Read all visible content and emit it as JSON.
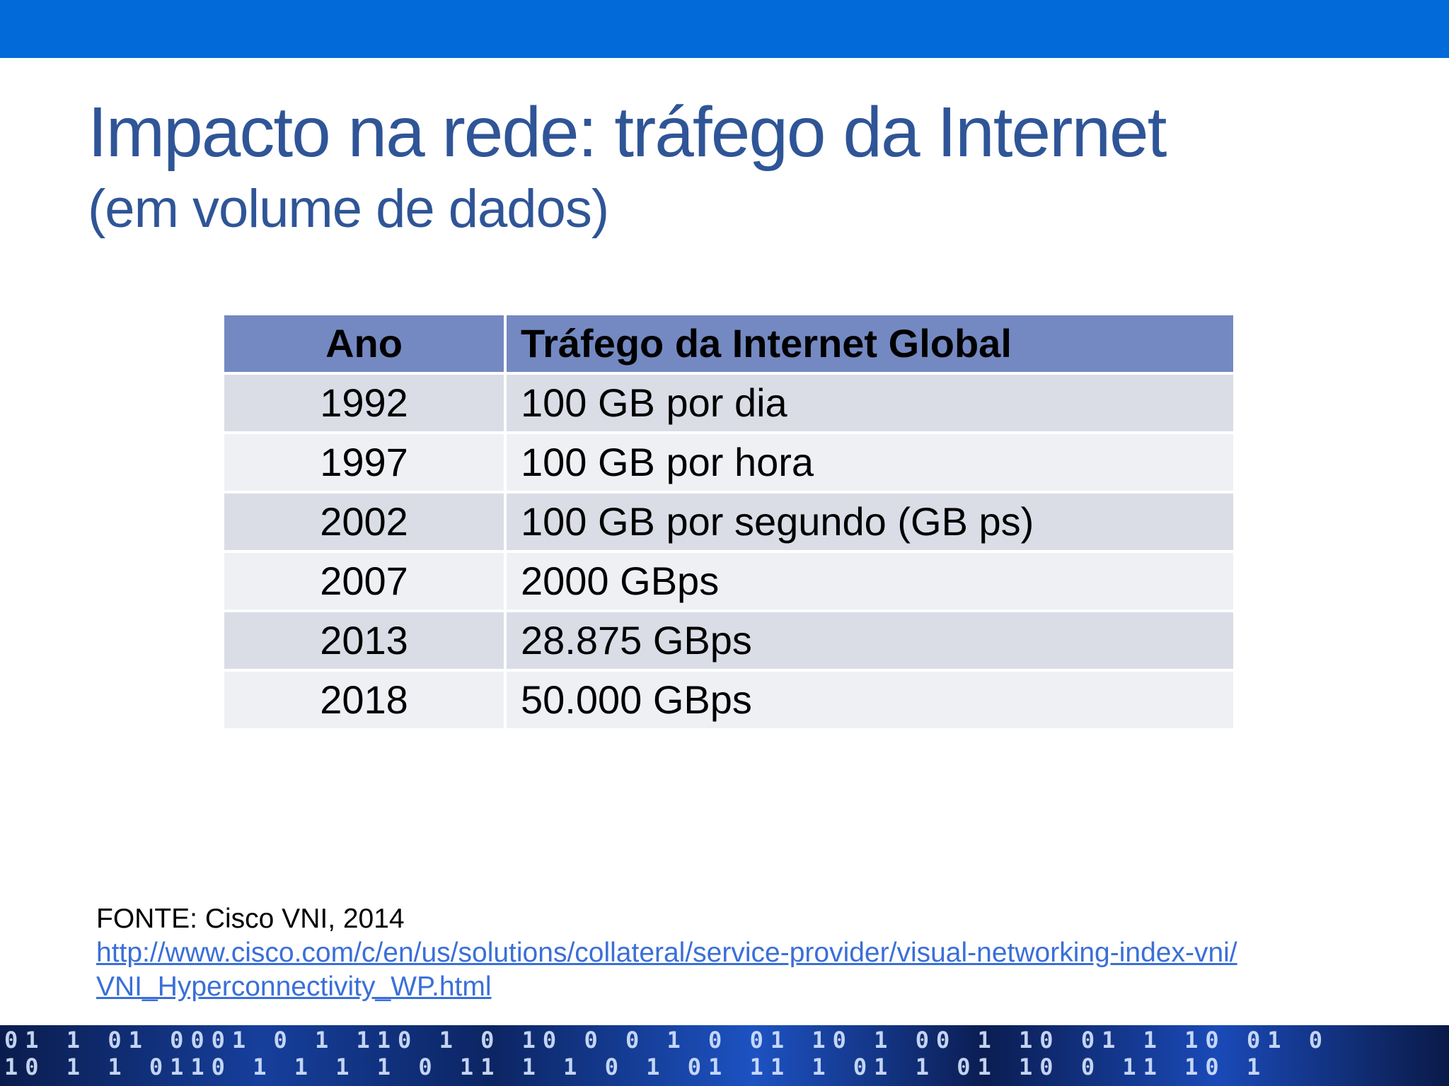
{
  "slide": {
    "title": "Impacto na rede: tráfego da Internet",
    "subtitle": "(em volume de dados)"
  },
  "table": {
    "headers": [
      "Ano",
      "Tráfego da Internet Global"
    ],
    "rows": [
      {
        "year": "1992",
        "traffic": "100 GB por dia"
      },
      {
        "year": "1997",
        "traffic": "100 GB por hora"
      },
      {
        "year": "2002",
        "traffic": "100 GB por segundo (GB ps)"
      },
      {
        "year": "2007",
        "traffic": "2000 GBps"
      },
      {
        "year": "2013",
        "traffic": "28.875 GBps"
      },
      {
        "year": "2018",
        "traffic": "50.000 GBps"
      }
    ]
  },
  "source": {
    "label": "FONTE: Cisco VNI, 2014",
    "link_line1": "http://www.cisco.com/c/en/us/solutions/collateral/service-provider/visual-networking-index-vni/",
    "link_line2": "VNI_Hyperconnectivity_WP.html"
  },
  "colors": {
    "top_bar": "#026ad9",
    "title": "#2f5597",
    "header_row": "#7489c2",
    "row_odd": "#dadde6",
    "row_even": "#eef0f4",
    "link": "#3a6fd8"
  }
}
